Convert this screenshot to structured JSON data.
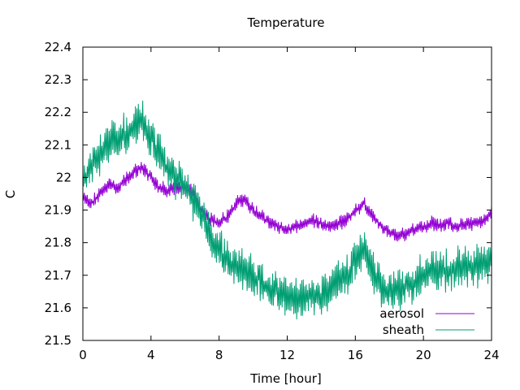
{
  "chart_data": {
    "type": "line",
    "title": "Temperature",
    "xlabel": "Time [hour]",
    "ylabel": "C",
    "xlim": [
      0,
      24
    ],
    "ylim": [
      21.5,
      22.4
    ],
    "x_ticks": [
      0,
      4,
      8,
      12,
      16,
      20,
      24
    ],
    "x_tick_labels": [
      "0",
      "4",
      "8",
      "12",
      "16",
      "20",
      "24"
    ],
    "y_ticks": [
      21.5,
      21.6,
      21.7,
      21.8,
      21.9,
      22.0,
      22.1,
      22.2,
      22.3,
      22.4
    ],
    "y_tick_labels": [
      "21.5",
      "21.6",
      "21.7",
      "21.8",
      "21.9",
      "22",
      "22.1",
      "22.2",
      "22.3",
      "22.4"
    ],
    "grid": false,
    "legend_position": "bottom-right",
    "series": [
      {
        "name": "aerosol",
        "color": "#9400d3",
        "x": [
          0,
          0.5,
          1,
          1.5,
          2,
          2.5,
          3,
          3.5,
          4,
          4.5,
          5,
          5.5,
          6,
          6.5,
          7,
          7.5,
          8,
          8.5,
          9,
          9.5,
          10,
          10.5,
          11,
          11.5,
          12,
          12.5,
          13,
          13.5,
          14,
          14.5,
          15,
          15.5,
          16,
          16.5,
          17,
          17.5,
          18,
          18.5,
          19,
          19.5,
          20,
          20.5,
          21,
          21.5,
          22,
          22.5,
          23,
          23.5,
          24
        ],
        "y": [
          21.94,
          21.92,
          21.95,
          21.98,
          21.97,
          21.99,
          22.02,
          22.03,
          22.0,
          21.97,
          21.96,
          21.97,
          21.97,
          21.95,
          21.9,
          21.87,
          21.86,
          21.88,
          21.92,
          21.93,
          21.9,
          21.88,
          21.86,
          21.85,
          21.84,
          21.85,
          21.86,
          21.87,
          21.86,
          21.85,
          21.86,
          21.87,
          21.9,
          21.92,
          21.88,
          21.85,
          21.83,
          21.82,
          21.83,
          21.84,
          21.85,
          21.86,
          21.85,
          21.86,
          21.85,
          21.86,
          21.86,
          21.87,
          21.89
        ]
      },
      {
        "name": "sheath",
        "color": "#009e73",
        "x": [
          0,
          0.5,
          1,
          1.5,
          2,
          2.5,
          3,
          3.5,
          4,
          4.5,
          5,
          5.5,
          6,
          6.5,
          7,
          7.5,
          8,
          8.5,
          9,
          9.5,
          10,
          10.5,
          11,
          11.5,
          12,
          12.5,
          13,
          13.5,
          14,
          14.5,
          15,
          15.5,
          16,
          16.5,
          17,
          17.5,
          18,
          18.5,
          19,
          19.5,
          20,
          20.5,
          21,
          21.5,
          22,
          22.5,
          23,
          23.5,
          24
        ],
        "y": [
          22.0,
          22.03,
          22.07,
          22.11,
          22.12,
          22.13,
          22.15,
          22.18,
          22.12,
          22.07,
          22.02,
          22.0,
          21.97,
          21.93,
          21.88,
          21.82,
          21.78,
          21.75,
          21.73,
          21.72,
          21.7,
          21.68,
          21.66,
          21.65,
          21.64,
          21.63,
          21.63,
          21.64,
          21.63,
          21.66,
          21.68,
          21.7,
          21.75,
          21.78,
          21.72,
          21.67,
          21.65,
          21.66,
          21.67,
          21.68,
          21.7,
          21.71,
          21.72,
          21.71,
          21.72,
          21.73,
          21.72,
          21.73,
          21.74
        ]
      }
    ]
  }
}
